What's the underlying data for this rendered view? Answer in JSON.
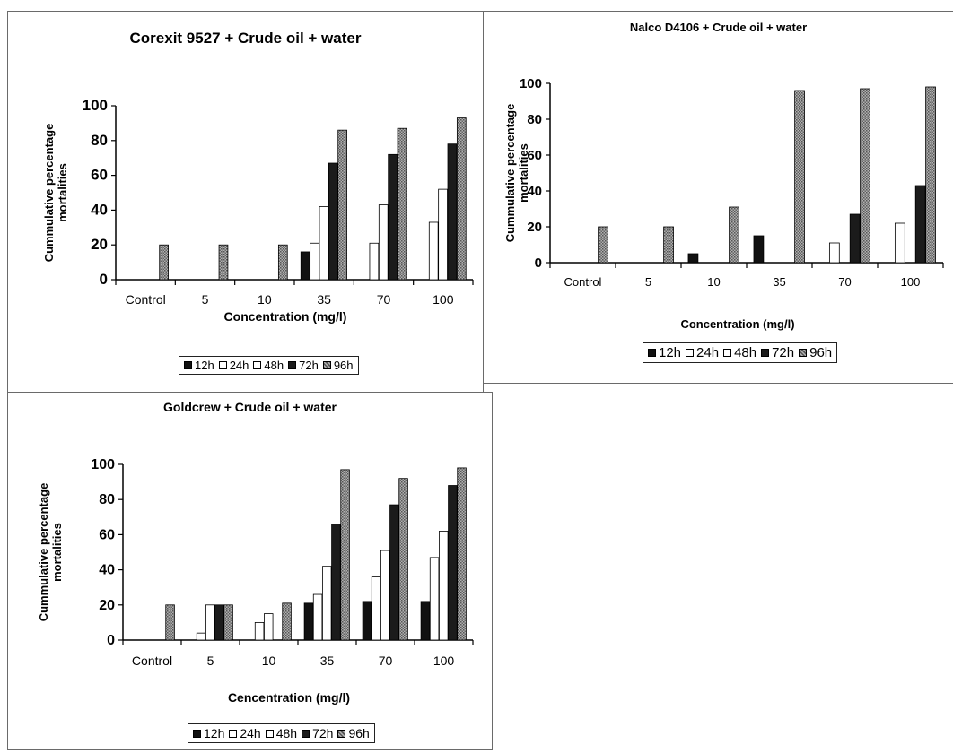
{
  "colors": {
    "h12": "#111111",
    "h24": "#ffffff",
    "h48": "#ffffff",
    "h72": "#1b1b1b",
    "h96": "#8a8a8a"
  },
  "legend": [
    "12h",
    "24h",
    "48h",
    "72h",
    "96h"
  ],
  "chart_data": [
    {
      "type": "bar",
      "title": "Corexit 9527 + Crude oil + water",
      "xlabel": "Concentration (mg/l)",
      "ylabel": "Cummulative percentage mortalities",
      "ylim": [
        0,
        100
      ],
      "yticks": [
        "0",
        "20",
        "40",
        "60",
        "80",
        "100"
      ],
      "categories": [
        "Control",
        "5",
        "10",
        "35",
        "70",
        "100"
      ],
      "legend_position": "bottom",
      "grid": false,
      "series": [
        {
          "name": "12h",
          "values": [
            0,
            0,
            0,
            16,
            0,
            0
          ]
        },
        {
          "name": "24h",
          "values": [
            0,
            0,
            0,
            21,
            21,
            33
          ]
        },
        {
          "name": "48h",
          "values": [
            0,
            0,
            0,
            42,
            43,
            52
          ]
        },
        {
          "name": "72h",
          "values": [
            0,
            0,
            0,
            67,
            72,
            78
          ]
        },
        {
          "name": "96h",
          "values": [
            20,
            20,
            20,
            86,
            87,
            93
          ]
        }
      ]
    },
    {
      "type": "bar",
      "title": "Nalco D4106 + Crude oil + water",
      "xlabel": "Concentration (mg/l)",
      "ylabel": "Cummulative percentage mortalities",
      "ylim": [
        0,
        100
      ],
      "yticks": [
        "0",
        "20",
        "40",
        "60",
        "80",
        "100"
      ],
      "categories": [
        "Control",
        "5",
        "10",
        "35",
        "70",
        "100"
      ],
      "legend_position": "bottom",
      "grid": false,
      "series": [
        {
          "name": "12h",
          "values": [
            0,
            0,
            5,
            15,
            0,
            0
          ]
        },
        {
          "name": "24h",
          "values": [
            0,
            0,
            0,
            0,
            11,
            22
          ]
        },
        {
          "name": "48h",
          "values": [
            0,
            0,
            0,
            0,
            0,
            0
          ]
        },
        {
          "name": "72h",
          "values": [
            0,
            0,
            0,
            0,
            27,
            43
          ]
        },
        {
          "name": "96h",
          "values": [
            20,
            20,
            31,
            96,
            97,
            98
          ]
        }
      ]
    },
    {
      "type": "bar",
      "title": "Goldcrew + Crude oil + water",
      "xlabel": "Cencentration  (mg/l)",
      "ylabel": "Cummulative percentage mortalities",
      "ylim": [
        0,
        100
      ],
      "yticks": [
        "0",
        "20",
        "40",
        "60",
        "80",
        "100"
      ],
      "categories": [
        "Control",
        "5",
        "10",
        "35",
        "70",
        "100"
      ],
      "legend_position": "bottom",
      "grid": false,
      "series": [
        {
          "name": "12h",
          "values": [
            0,
            0,
            0,
            21,
            22,
            22
          ]
        },
        {
          "name": "24h",
          "values": [
            0,
            4,
            10,
            26,
            36,
            47
          ]
        },
        {
          "name": "48h",
          "values": [
            0,
            20,
            15,
            42,
            51,
            62
          ]
        },
        {
          "name": "72h",
          "values": [
            0,
            20,
            0,
            66,
            77,
            88
          ]
        },
        {
          "name": "96h",
          "values": [
            20,
            20,
            21,
            97,
            92,
            98
          ]
        }
      ]
    }
  ]
}
